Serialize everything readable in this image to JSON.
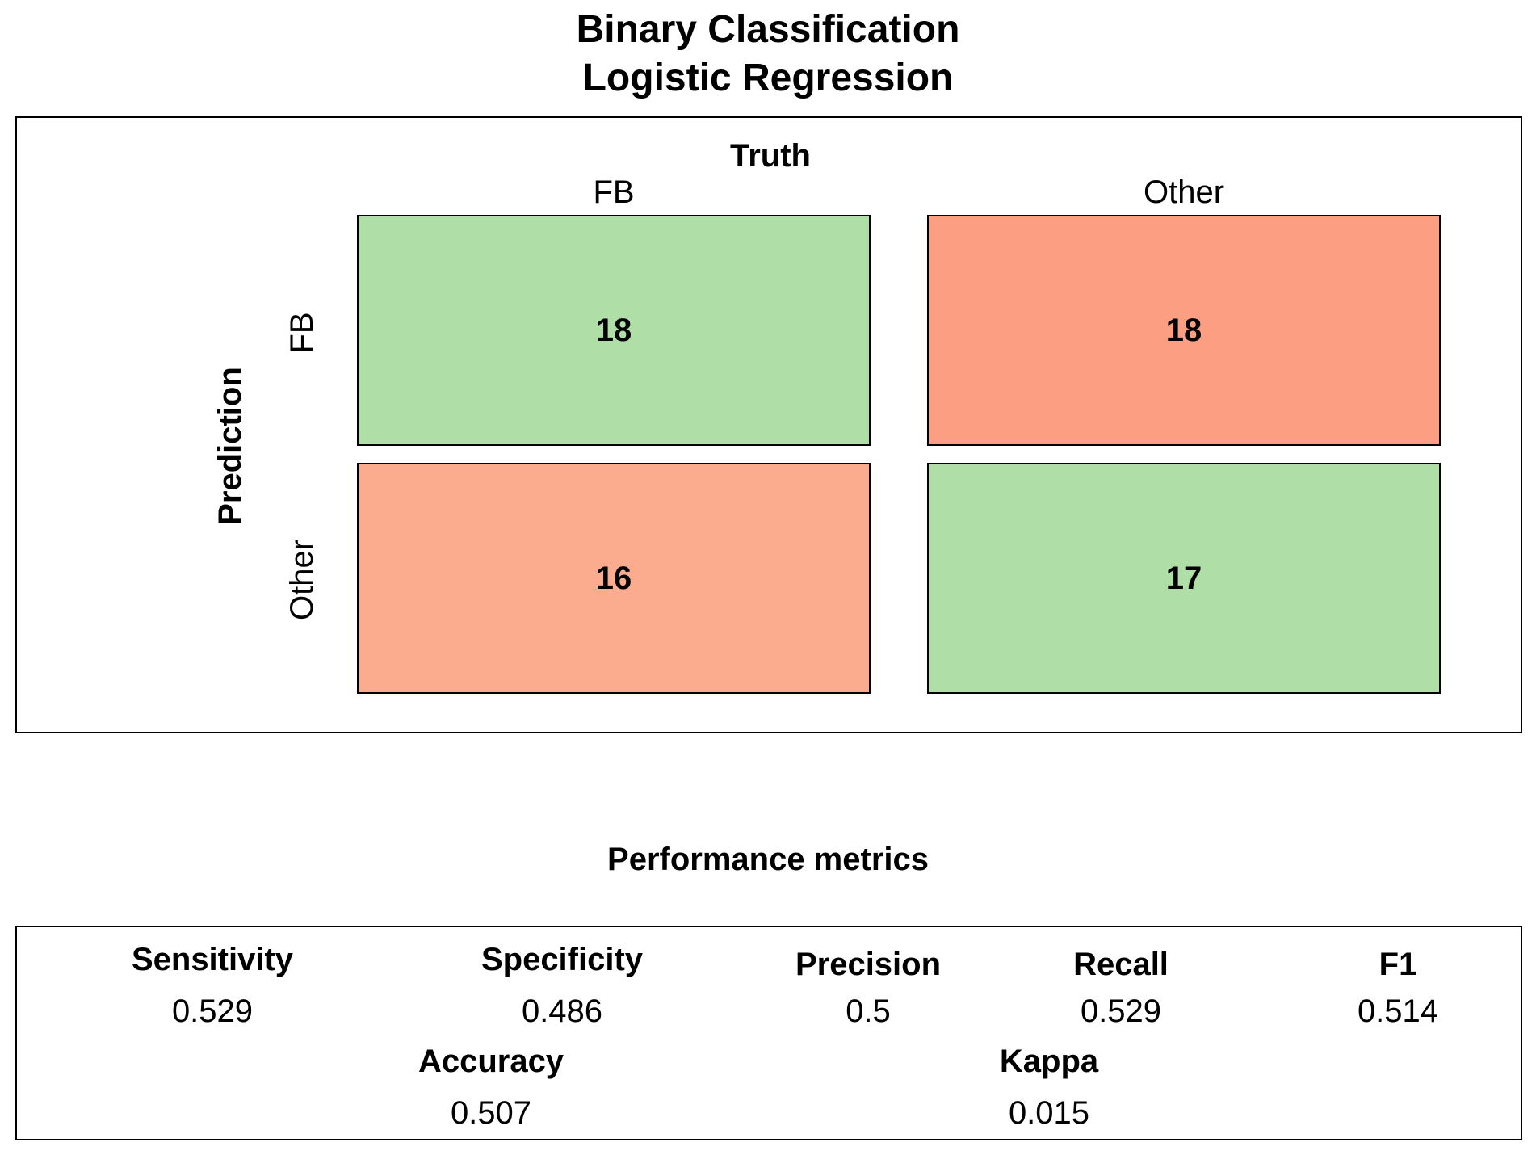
{
  "title": {
    "line1": "Binary Classification",
    "line2": "Logistic Regression"
  },
  "chart_data": {
    "type": "heatmap",
    "x_title": "Truth",
    "y_title": "Prediction",
    "columns": [
      "FB",
      "Other"
    ],
    "rows": [
      "FB",
      "Other"
    ],
    "values": [
      [
        18,
        18
      ],
      [
        16,
        17
      ]
    ],
    "colors": {
      "correct": "#b0dea7",
      "incorrect_top": "#fc9e82",
      "incorrect_bottom": "#fbab8e"
    }
  },
  "metrics": {
    "heading": "Performance metrics",
    "items": [
      {
        "name": "Sensitivity",
        "value": "0.529"
      },
      {
        "name": "Specificity",
        "value": "0.486"
      },
      {
        "name": "Precision",
        "value": "0.5"
      },
      {
        "name": "Recall",
        "value": "0.529"
      },
      {
        "name": "F1",
        "value": "0.514"
      },
      {
        "name": "Accuracy",
        "value": "0.507"
      },
      {
        "name": "Kappa",
        "value": "0.015"
      }
    ]
  }
}
